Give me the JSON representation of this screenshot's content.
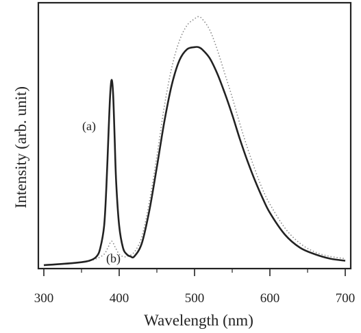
{
  "chart_data": {
    "type": "line",
    "title": "",
    "xlabel": "Wavelength (nm)",
    "ylabel": "Intensity (arb. unit)",
    "xlim": [
      300,
      700
    ],
    "ylim": [
      0,
      1.1
    ],
    "xticks": [
      "300",
      "400",
      "500",
      "600",
      "700"
    ],
    "yticks_shown": false,
    "grid": false,
    "legend": "none",
    "annotations": [
      {
        "text": "(a)",
        "target_series": "a"
      },
      {
        "text": "(b)",
        "target_series": "b"
      }
    ],
    "series": [
      {
        "id": "a",
        "style": "solid",
        "color": "#222222",
        "x": [
          300,
          340,
          360,
          370,
          375,
          380,
          383,
          386,
          388,
          390,
          392,
          394,
          396,
          400,
          405,
          410,
          415,
          420,
          430,
          440,
          450,
          460,
          470,
          480,
          490,
          500,
          505,
          510,
          520,
          530,
          540,
          550,
          560,
          570,
          580,
          590,
          600,
          620,
          640,
          660,
          680,
          700
        ],
        "y": [
          0.0,
          0.01,
          0.02,
          0.04,
          0.08,
          0.18,
          0.36,
          0.62,
          0.78,
          0.85,
          0.78,
          0.58,
          0.38,
          0.18,
          0.08,
          0.05,
          0.04,
          0.04,
          0.1,
          0.25,
          0.45,
          0.66,
          0.83,
          0.94,
          0.99,
          1.0,
          1.0,
          0.99,
          0.95,
          0.88,
          0.79,
          0.69,
          0.58,
          0.48,
          0.39,
          0.31,
          0.24,
          0.14,
          0.08,
          0.05,
          0.03,
          0.02
        ]
      },
      {
        "id": "b",
        "style": "dotted",
        "color": "#888888",
        "x": [
          300,
          340,
          360,
          370,
          380,
          385,
          390,
          395,
          400,
          405,
          410,
          420,
          430,
          440,
          450,
          460,
          470,
          480,
          490,
          500,
          505,
          510,
          520,
          530,
          540,
          550,
          560,
          570,
          580,
          590,
          600,
          620,
          640,
          660,
          680,
          700
        ],
        "y": [
          0.0,
          0.01,
          0.02,
          0.03,
          0.05,
          0.08,
          0.11,
          0.08,
          0.05,
          0.04,
          0.04,
          0.06,
          0.13,
          0.29,
          0.5,
          0.73,
          0.91,
          1.03,
          1.1,
          1.13,
          1.14,
          1.13,
          1.08,
          0.99,
          0.88,
          0.77,
          0.65,
          0.54,
          0.44,
          0.35,
          0.28,
          0.17,
          0.1,
          0.06,
          0.04,
          0.03
        ]
      }
    ]
  }
}
